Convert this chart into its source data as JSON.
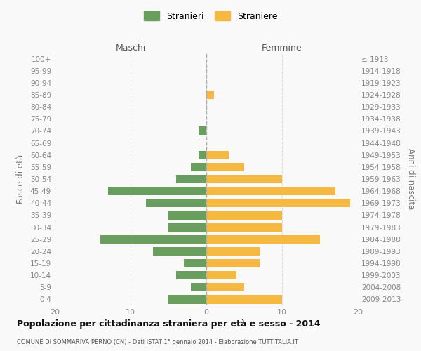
{
  "age_groups": [
    "100+",
    "95-99",
    "90-94",
    "85-89",
    "80-84",
    "75-79",
    "70-74",
    "65-69",
    "60-64",
    "55-59",
    "50-54",
    "45-49",
    "40-44",
    "35-39",
    "30-34",
    "25-29",
    "20-24",
    "15-19",
    "10-14",
    "5-9",
    "0-4"
  ],
  "birth_years": [
    "≤ 1913",
    "1914-1918",
    "1919-1923",
    "1924-1928",
    "1929-1933",
    "1934-1938",
    "1939-1943",
    "1944-1948",
    "1949-1953",
    "1954-1958",
    "1959-1963",
    "1964-1968",
    "1969-1973",
    "1974-1978",
    "1979-1983",
    "1984-1988",
    "1989-1993",
    "1994-1998",
    "1999-2003",
    "2004-2008",
    "2009-2013"
  ],
  "maschi": [
    0,
    0,
    0,
    0,
    0,
    0,
    1,
    0,
    1,
    2,
    4,
    13,
    8,
    5,
    5,
    14,
    7,
    3,
    4,
    2,
    5
  ],
  "femmine": [
    0,
    0,
    0,
    1,
    0,
    0,
    0,
    0,
    3,
    5,
    10,
    17,
    19,
    10,
    10,
    15,
    7,
    7,
    4,
    5,
    10
  ],
  "color_maschi": "#6a9e5e",
  "color_femmine": "#f5b942",
  "title": "Popolazione per cittadinanza straniera per età e sesso - 2014",
  "subtitle": "COMUNE DI SOMMARIVA PERNO (CN) - Dati ISTAT 1° gennaio 2014 - Elaborazione TUTTITALIA.IT",
  "xlabel_left": "Maschi",
  "xlabel_right": "Femmine",
  "ylabel_left": "Fasce di età",
  "ylabel_right": "Anni di nascita",
  "xlim": 20,
  "legend_stranieri": "Stranieri",
  "legend_straniere": "Straniere",
  "bg_color": "#f9f9f9",
  "grid_color": "#dddddd"
}
